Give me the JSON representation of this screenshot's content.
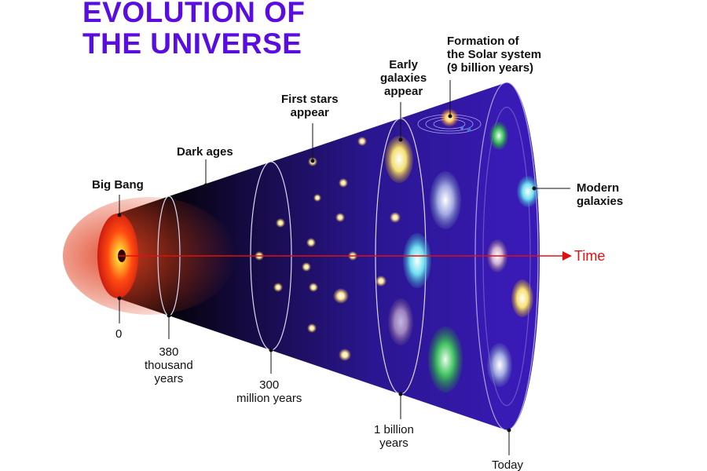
{
  "title": {
    "line1": "EVOLUTION OF",
    "line2": "THE UNIVERSE",
    "color": "#5a0de0"
  },
  "stages": {
    "big_bang": "Big Bang",
    "dark_ages": "Dark ages",
    "first_stars": [
      "First stars",
      "appear"
    ],
    "early_galaxies": [
      "Early",
      "galaxies",
      "appear"
    ],
    "solar_system": [
      "Formation of",
      "the Solar system",
      "(9 billion years)"
    ],
    "modern_galaxies": [
      "Modern",
      "galaxies"
    ]
  },
  "timeline": {
    "t0": "0",
    "t380k": [
      "380",
      "thousand",
      "years"
    ],
    "t300m": [
      "300",
      "million years"
    ],
    "t1b": [
      "1 billion",
      "years"
    ],
    "today": "Today"
  },
  "arrow": {
    "label": "Time",
    "color": "#e01010"
  }
}
